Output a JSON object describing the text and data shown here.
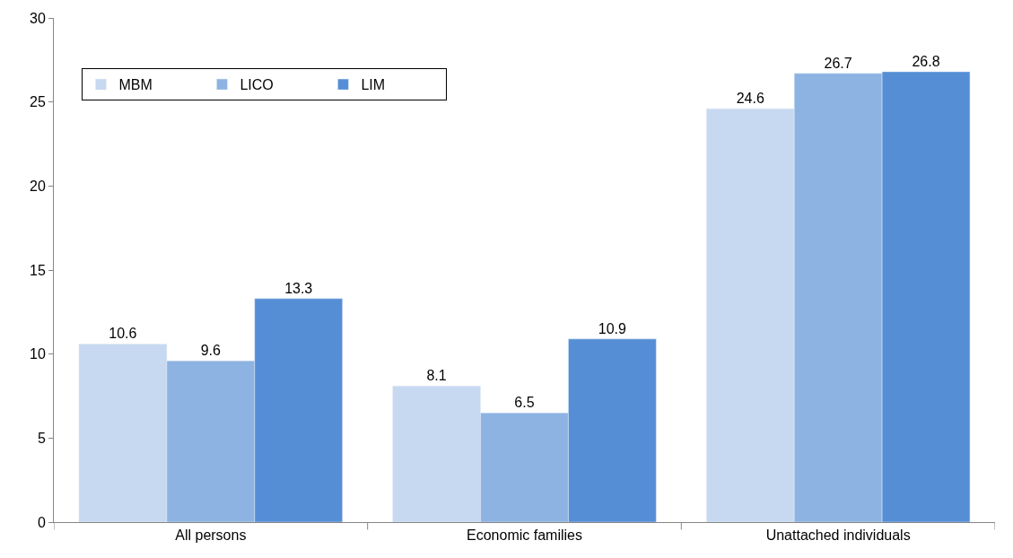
{
  "chart_data": {
    "type": "bar",
    "categories": [
      "All persons",
      "Economic families",
      "Unattached individuals"
    ],
    "series": [
      {
        "name": "MBM",
        "color": "#c6d9f0",
        "values": [
          10.6,
          8.1,
          24.6
        ]
      },
      {
        "name": "LICO",
        "color": "#8db3e2",
        "values": [
          9.6,
          6.5,
          26.7
        ]
      },
      {
        "name": "LIM",
        "color": "#558ed5",
        "values": [
          13.3,
          10.9,
          26.8
        ]
      }
    ],
    "ylim": [
      0,
      30
    ],
    "yticks": [
      0,
      5,
      10,
      15,
      20,
      25,
      30
    ],
    "grid": false,
    "legend": "top left",
    "data_labels": true
  }
}
